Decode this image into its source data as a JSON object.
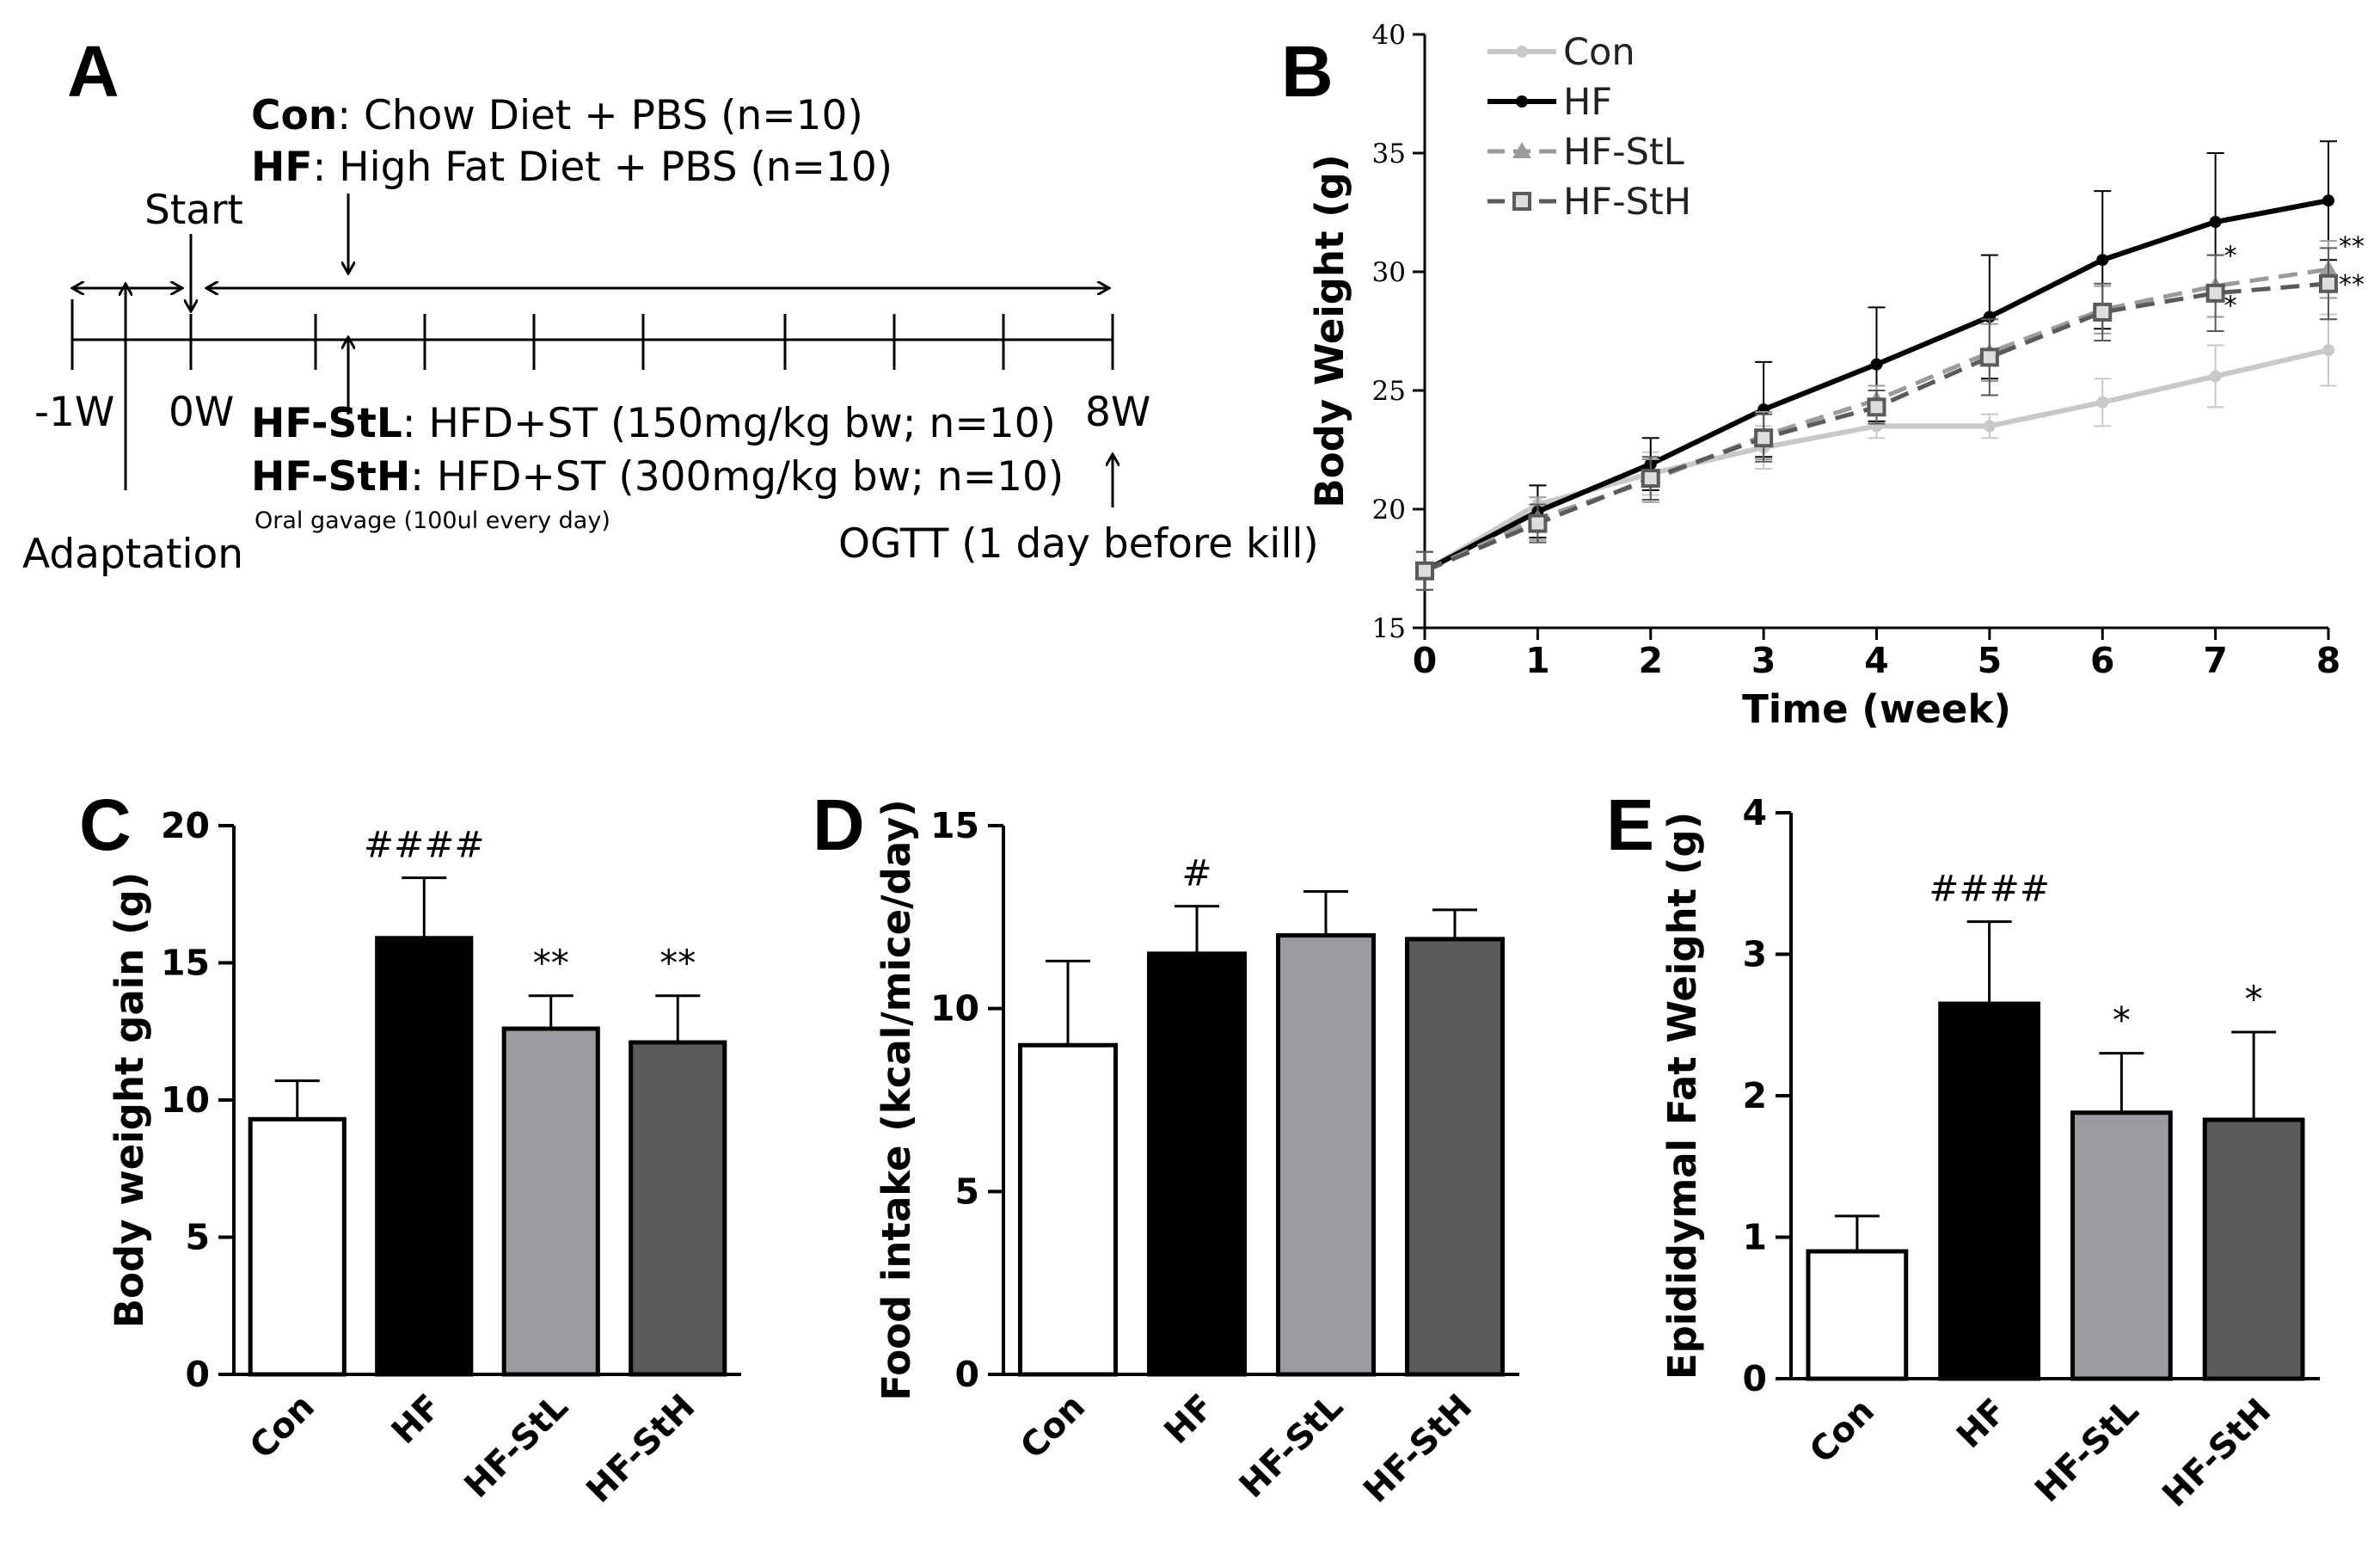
{
  "panel_letters": {
    "A": "A",
    "B": "B",
    "C": "C",
    "D": "D",
    "E": "E"
  },
  "timeline": {
    "con_label": "Con",
    "con_desc": ": Chow Diet + PBS (n=10)",
    "hf_label": "HF",
    "hf_desc": ": High Fat Diet + PBS (n=10)",
    "start": "Start",
    "tick_m1w": "-1W",
    "tick_0w": "0W",
    "tick_8w": "8W",
    "stl_label": "HF-StL",
    "stl_desc": ": HFD+ST (150mg/kg bw; n=10)",
    "sth_label": "HF-StH",
    "sth_desc": ": HFD+ST (300mg/kg bw; n=10)",
    "gavage": "Oral gavage (100ul every day)",
    "adaptation": "Adaptation",
    "ogtt": "OGTT (1 day before kill)"
  },
  "colors": {
    "con": "#c8c8c8",
    "hf": "#000000",
    "stl": "#9a9aa0",
    "sth": "#5a5a5a"
  },
  "chart_data": [
    {
      "id": "B",
      "type": "line",
      "title": "",
      "xlabel": "Time (week)",
      "ylabel": "Body Weight (g)",
      "x": [
        0,
        1,
        2,
        3,
        4,
        5,
        6,
        7,
        8
      ],
      "xticks": [
        "0",
        "1",
        "2",
        "3",
        "4",
        "5",
        "6",
        "7",
        "8"
      ],
      "yticks": [
        "15",
        "20",
        "25",
        "30",
        "35",
        "40"
      ],
      "ylim": [
        15,
        40
      ],
      "legend_position": "top-left",
      "series": [
        {
          "name": "Con",
          "values": [
            17.4,
            20.2,
            21.5,
            22.6,
            23.5,
            23.5,
            24.5,
            25.6,
            26.7
          ],
          "err": [
            0.8,
            0.8,
            0.9,
            0.9,
            0.5,
            0.5,
            1.0,
            1.3,
            1.5
          ]
        },
        {
          "name": "HF",
          "values": [
            17.4,
            19.9,
            21.9,
            24.2,
            26.1,
            28.1,
            30.5,
            32.1,
            33.0
          ],
          "err": [
            0.8,
            1.1,
            1.1,
            2.0,
            2.4,
            2.6,
            2.9,
            2.9,
            2.5
          ]
        },
        {
          "name": "HF-StL",
          "values": [
            17.4,
            19.6,
            21.2,
            23.1,
            24.6,
            26.6,
            28.4,
            29.4,
            30.1
          ],
          "err": [
            0.8,
            0.9,
            0.9,
            1.0,
            0.6,
            1.2,
            1.0,
            1.3,
            1.2
          ]
        },
        {
          "name": "HF-StH",
          "values": [
            17.4,
            19.4,
            21.3,
            23.0,
            24.3,
            26.4,
            28.3,
            29.1,
            29.5
          ],
          "err": [
            0.8,
            0.8,
            0.9,
            1.0,
            0.7,
            1.6,
            1.2,
            1.6,
            1.5
          ]
        }
      ],
      "annotations": [
        "*",
        "**",
        "*",
        "**"
      ]
    },
    {
      "id": "C",
      "type": "bar",
      "title": "",
      "xlabel": "",
      "ylabel": "Body weight gain (g)",
      "categories": [
        "Con",
        "HF",
        "HF-StL",
        "HF-StH"
      ],
      "values": [
        9.3,
        15.9,
        12.6,
        12.1
      ],
      "err": [
        1.4,
        2.2,
        1.2,
        1.7
      ],
      "yticks": [
        "0",
        "5",
        "10",
        "15",
        "20"
      ],
      "ylim": [
        0,
        20
      ],
      "annotations": [
        "",
        "####",
        "**",
        "**"
      ]
    },
    {
      "id": "D",
      "type": "bar",
      "title": "",
      "xlabel": "",
      "ylabel": "Food intake (kcal/mice/day)",
      "categories": [
        "Con",
        "HF",
        "HF-StL",
        "HF-StH"
      ],
      "values": [
        9.0,
        11.5,
        12.0,
        11.9
      ],
      "err": [
        2.3,
        1.3,
        1.2,
        0.8
      ],
      "yticks": [
        "0",
        "5",
        "10",
        "15"
      ],
      "ylim": [
        0,
        15
      ],
      "annotations": [
        "",
        "#",
        "",
        ""
      ]
    },
    {
      "id": "E",
      "type": "bar",
      "title": "",
      "xlabel": "",
      "ylabel": "Epididymal Fat Weight (g)",
      "categories": [
        "Con",
        "HF",
        "HF-StL",
        "HF-StH"
      ],
      "values": [
        0.9,
        2.65,
        1.88,
        1.83
      ],
      "err": [
        0.25,
        0.58,
        0.42,
        0.62
      ],
      "yticks": [
        "0",
        "1",
        "2",
        "3",
        "4"
      ],
      "ylim": [
        0,
        4
      ],
      "annotations": [
        "",
        "####",
        "*",
        "*"
      ]
    }
  ]
}
